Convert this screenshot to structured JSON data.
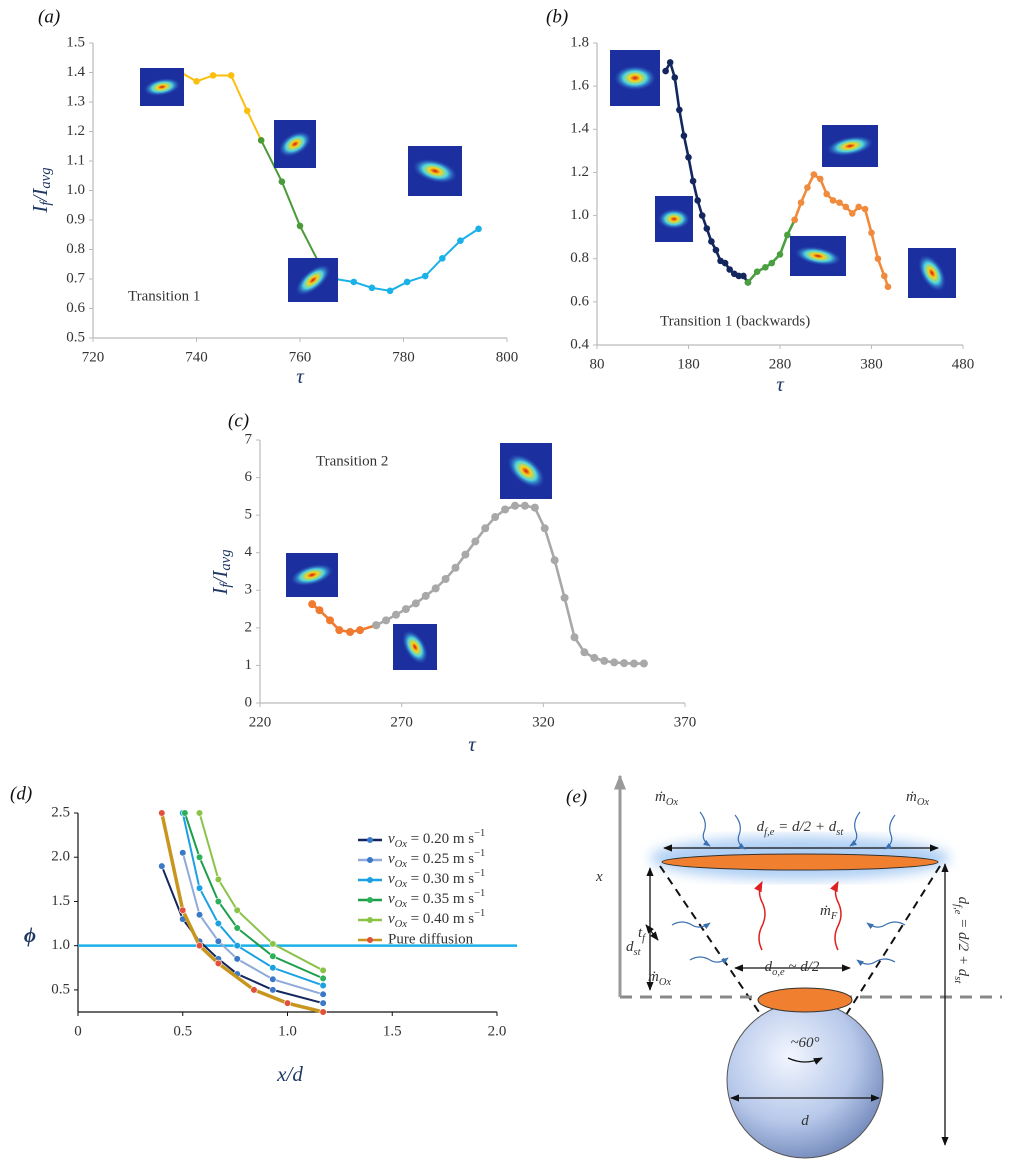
{
  "chart_data": [
    {
      "type": "line",
      "label": "(a)",
      "ylabel": [
        "I",
        "f",
        "/I",
        "avg"
      ],
      "xlabel": "τ",
      "annotation": "Transition 1",
      "xlim": [
        720,
        800
      ],
      "xticks": [
        720,
        740,
        760,
        780,
        800
      ],
      "ylim": [
        0.5,
        1.5
      ],
      "yticks": [
        0.5,
        0.6,
        0.7,
        0.8,
        0.9,
        {
          "value": 1,
          "label": "1.0"
        },
        1.1,
        1.2,
        1.3,
        1.4,
        1.5
      ],
      "series": [
        {
          "color": "#fbbf10",
          "x": [
            737,
            740,
            743.2,
            746.7,
            749.8,
            752.5
          ],
          "values": [
            1.4,
            1.37,
            1.39,
            1.39,
            1.27,
            1.17
          ]
        },
        {
          "color": "#4a9a3a",
          "x": [
            752.5,
            756.5,
            760,
            763.5
          ],
          "values": [
            1.17,
            1.03,
            0.88,
            0.76
          ]
        },
        {
          "color": "#1ab0e8",
          "x": [
            763.5,
            766.8,
            770.4,
            773.9,
            777.4,
            780.7,
            784.2,
            787.5,
            791,
            794.5
          ],
          "values": [
            0.76,
            0.7,
            0.69,
            0.67,
            0.66,
            0.69,
            0.71,
            0.77,
            0.83,
            0.87
          ]
        }
      ]
    },
    {
      "type": "line",
      "label": "(b)",
      "xlabel": "τ",
      "annotation": "Transition 1 (backwards)",
      "xlim": [
        80,
        480
      ],
      "xticks": [
        80,
        180,
        280,
        380,
        480
      ],
      "ylim": [
        0.4,
        1.8
      ],
      "yticks": [
        0.4,
        0.6,
        0.8,
        {
          "value": 1,
          "label": "1.0"
        },
        1.2,
        1.4,
        1.6,
        1.8
      ],
      "series": [
        {
          "color": "#13265e",
          "x": [
            155,
            160,
            165,
            170,
            175,
            180,
            185,
            190,
            195,
            200,
            205,
            210,
            215,
            220,
            225,
            230,
            235,
            240,
            245
          ],
          "values": [
            1.67,
            1.71,
            1.64,
            1.49,
            1.37,
            1.27,
            1.16,
            1.07,
            1.0,
            0.94,
            0.88,
            0.84,
            0.79,
            0.78,
            0.75,
            0.73,
            0.72,
            0.72,
            0.69
          ]
        },
        {
          "color": "#4aa040",
          "x": [
            245,
            255,
            264,
            271,
            280,
            288,
            296
          ],
          "values": [
            0.69,
            0.74,
            0.76,
            0.78,
            0.82,
            0.91,
            0.98
          ]
        },
        {
          "color": "#f08a3c",
          "x": [
            296,
            303,
            310,
            317,
            324,
            331,
            338,
            345,
            352,
            359,
            366,
            373,
            380,
            387,
            394,
            398
          ],
          "values": [
            0.98,
            1.06,
            1.13,
            1.19,
            1.17,
            1.1,
            1.07,
            1.06,
            1.04,
            1.01,
            1.04,
            1.03,
            0.92,
            0.8,
            0.72,
            0.67
          ]
        }
      ]
    },
    {
      "type": "line",
      "label": "(c)",
      "ylabel": [
        "I",
        "f",
        "/I",
        "avg"
      ],
      "xlabel": "τ",
      "annotation": "Transition 2",
      "xlim": [
        220,
        370
      ],
      "xticks": [
        220,
        270,
        320,
        370
      ],
      "ylim": [
        0,
        7
      ],
      "yticks": [
        0,
        1,
        2,
        3,
        4,
        5,
        6,
        7
      ],
      "series": [
        {
          "color": "#f07a30",
          "x": [
            238.4,
            241,
            244.7,
            248,
            251.8,
            255.3,
            261
          ],
          "values": [
            2.63,
            2.47,
            2.2,
            1.94,
            1.89,
            1.94,
            2.07
          ]
        },
        {
          "color": "#a8a8a8",
          "x": [
            261,
            264.5,
            268,
            271.5,
            275,
            278.5,
            282,
            285.5,
            289,
            292.5,
            296,
            299.5,
            303,
            306.5,
            310,
            313.5,
            317,
            320.5,
            324,
            327.5,
            331,
            334.5,
            338,
            341.5,
            345,
            348.5,
            352,
            355.5
          ],
          "values": [
            2.07,
            2.2,
            2.35,
            2.5,
            2.65,
            2.85,
            3.05,
            3.3,
            3.6,
            3.95,
            4.3,
            4.65,
            4.95,
            5.15,
            5.25,
            5.25,
            5.2,
            4.65,
            3.8,
            2.8,
            1.75,
            1.35,
            1.2,
            1.12,
            1.08,
            1.06,
            1.05,
            1.05
          ]
        }
      ]
    },
    {
      "type": "line",
      "label": "(d)",
      "ylabel": "ϕ",
      "xlabel": "x/d",
      "legend": "upper right",
      "xlim": [
        0,
        2
      ],
      "xticks": [
        0,
        0.5,
        {
          "value": 1,
          "label": "1.0"
        },
        1.5,
        {
          "value": 2,
          "label": "2.0"
        }
      ],
      "ylim": [
        0.25,
        2.5
      ],
      "yticks": [
        0.5,
        {
          "value": 1,
          "label": "1.0"
        },
        1.5,
        {
          "value": 2,
          "label": "2.0"
        },
        2.5
      ],
      "hline": 1,
      "hline_color": "#1ab0e8",
      "series": [
        {
          "name": "vOx = 0.20 m s−1",
          "color": "#13265e",
          "marker_color": "#3a78c8",
          "x": [
            0.4,
            0.5,
            0.58,
            0.67,
            0.76,
            0.93,
            1.17
          ],
          "values": [
            1.9,
            1.3,
            1.05,
            0.85,
            0.68,
            0.5,
            0.35
          ]
        },
        {
          "name": "vOx = 0.25 m s−1",
          "color": "#8fa9d9",
          "marker_color": "#3a78c8",
          "x": [
            0.5,
            0.58,
            0.67,
            0.76,
            0.93,
            1.17
          ],
          "values": [
            2.05,
            1.35,
            1.05,
            0.85,
            0.62,
            0.45
          ]
        },
        {
          "name": "vOx = 0.30 m s−1",
          "color": "#1ba1e2",
          "marker_color": "#1ba1e2",
          "x": [
            0.5,
            0.58,
            0.67,
            0.76,
            0.93,
            1.17
          ],
          "values": [
            2.5,
            1.65,
            1.25,
            1.0,
            0.75,
            0.55
          ]
        },
        {
          "name": "vOx = 0.35 m s−1",
          "color": "#1e9e4a",
          "marker_color": "#2db05a",
          "x": [
            0.51,
            0.58,
            0.67,
            0.76,
            0.93,
            1.17
          ],
          "values": [
            2.5,
            2.0,
            1.5,
            1.2,
            0.88,
            0.63
          ]
        },
        {
          "name": "vOx = 0.40 m s−1",
          "color": "#8bc34a",
          "marker_color": "#8bc34a",
          "x": [
            0.58,
            0.67,
            0.76,
            0.93,
            1.17
          ],
          "values": [
            2.5,
            1.75,
            1.4,
            1.02,
            0.72
          ]
        },
        {
          "name": "Pure diffusion",
          "color": "#c8961e",
          "marker_color": "#e0503a",
          "x": [
            0.4,
            0.5,
            0.58,
            0.67,
            0.84,
            1.0,
            1.17
          ],
          "values": [
            2.5,
            1.4,
            1.0,
            0.8,
            0.5,
            0.35,
            0.25
          ]
        }
      ]
    }
  ],
  "diagram": {
    "label": "(e)",
    "texts": [
      [
        "ṁ",
        "Ox"
      ],
      [
        "ṁ",
        "Ox"
      ],
      [
        "d",
        "f,e",
        " = d/2 + d",
        "st"
      ],
      [
        "x"
      ],
      [
        "t",
        "f"
      ],
      [
        "d",
        "st"
      ],
      [
        "ṁ",
        "F"
      ],
      [
        "ṁ",
        "Ox"
      ],
      [
        "d",
        "o,e",
        " ~ d/2"
      ],
      [
        "~60°"
      ],
      [
        "d"
      ],
      [
        "d",
        "f,e",
        " = d/2 + d",
        "st"
      ]
    ]
  }
}
